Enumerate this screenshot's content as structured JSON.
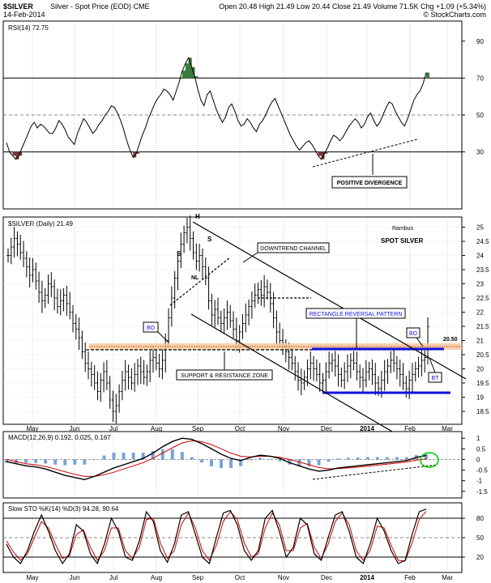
{
  "header": {
    "symbol": "$SILVER",
    "desc": "Silver - Spot Price (EOD)  CME",
    "date": "14-Feb-2014",
    "ohlc": "Open 20.48  High 21.49  Low 20.44  Close 21.49  Volume 71.5K  Chg +1.09 (+5.34%)",
    "copyright": "© StockCharts.com"
  },
  "chart_data": [
    {
      "type": "line",
      "panel": "rsi",
      "title": "RSI(14) 72.75",
      "ylim": [
        0,
        100
      ],
      "y_ticks": [
        30,
        50,
        70,
        90
      ],
      "overbought": 70,
      "oversold": 30,
      "x_ticks": [
        "May",
        "Jun",
        "Jul",
        "Aug",
        "Sep",
        "Oct",
        "Nov",
        "Dec",
        "2014",
        "Feb",
        "Mar"
      ],
      "series": [
        {
          "values": [
            35,
            30,
            28,
            26,
            28,
            32,
            36,
            40,
            44,
            46,
            43,
            45,
            44,
            42,
            40,
            40,
            43,
            47,
            45,
            42,
            38,
            36,
            34,
            40,
            44,
            48,
            46,
            43,
            40,
            42,
            45,
            47,
            50,
            52,
            55,
            54,
            51,
            47,
            42,
            36,
            31,
            27,
            29,
            34,
            39,
            43,
            48,
            52,
            56,
            59,
            61,
            64,
            63,
            61,
            58,
            63,
            68,
            74,
            78,
            81,
            76,
            71,
            64,
            58,
            55,
            61,
            63,
            58,
            53,
            49,
            46,
            49,
            54,
            56,
            52,
            47,
            44,
            45,
            48,
            46,
            43,
            41,
            45,
            47,
            50,
            54,
            57,
            59,
            55,
            51,
            47,
            43,
            39,
            36,
            33,
            31,
            33,
            35,
            36,
            34,
            31,
            28,
            26,
            29,
            32,
            36,
            39,
            38,
            36,
            38,
            41,
            44,
            46,
            48,
            46,
            43,
            45,
            49,
            51,
            47,
            44,
            46,
            50,
            54,
            57,
            56,
            52,
            49,
            46,
            44,
            48,
            53,
            58,
            61,
            63,
            67,
            73
          ]
        }
      ],
      "annotations": [
        "POSITIVE DIVERGENCE"
      ]
    },
    {
      "type": "candlestick",
      "panel": "price",
      "title": "$SILVER (Daily) 21.49",
      "ylim": [
        18.1,
        25.3
      ],
      "y_ticks": [
        18.5,
        19.0,
        19.5,
        20.0,
        20.5,
        21.0,
        21.5,
        22.0,
        22.5,
        23.0,
        23.5,
        24.0,
        24.5,
        25.0
      ],
      "x_ticks": [
        "May",
        "Jun",
        "Jul",
        "Aug",
        "Sep",
        "Oct",
        "Nov",
        "Dec",
        "2014",
        "Feb",
        "Mar"
      ],
      "close": [
        24.0,
        24.3,
        24.6,
        24.4,
        24.1,
        23.9,
        23.6,
        23.3,
        23.5,
        23.1,
        22.7,
        22.4,
        22.6,
        23.0,
        22.9,
        22.5,
        22.2,
        22.4,
        22.6,
        22.3,
        22.0,
        21.6,
        21.4,
        21.1,
        20.6,
        20.2,
        20.0,
        19.8,
        19.5,
        19.2,
        19.6,
        19.9,
        19.5,
        18.9,
        18.5,
        18.7,
        19.2,
        19.6,
        19.9,
        19.7,
        19.5,
        19.8,
        20.1,
        19.9,
        19.7,
        19.9,
        20.3,
        20.4,
        20.2,
        20.0,
        20.3,
        21.0,
        21.8,
        22.5,
        23.2,
        23.8,
        24.4,
        24.8,
        25.0,
        24.6,
        24.1,
        23.8,
        24.0,
        23.6,
        23.2,
        22.4,
        21.9,
        22.1,
        21.8,
        21.6,
        21.8,
        22.0,
        21.7,
        21.4,
        21.0,
        21.3,
        21.6,
        21.9,
        22.2,
        22.4,
        22.6,
        22.8,
        22.6,
        22.9,
        22.7,
        22.3,
        21.8,
        21.3,
        21.0,
        20.8,
        20.6,
        20.4,
        20.2,
        19.9,
        19.6,
        19.5,
        19.7,
        20.0,
        20.2,
        20.0,
        19.8,
        19.5,
        19.6,
        19.9,
        20.2,
        20.3,
        20.1,
        19.8,
        19.6,
        19.9,
        20.1,
        20.3,
        20.2,
        19.9,
        19.7,
        19.6,
        19.9,
        20.0,
        19.8,
        19.5,
        19.3,
        19.6,
        19.9,
        20.1,
        20.3,
        20.2,
        20.0,
        19.8,
        19.5,
        19.3,
        19.6,
        19.8,
        20.0,
        20.1,
        20.3,
        20.4,
        21.49
      ],
      "levels": {
        "support_resistance": 20.5,
        "rectangle_top": 20.45,
        "rectangle_bottom": 19.0
      },
      "level_label": "20.50",
      "annotations": {
        "H": "H",
        "S1": "S",
        "S2": "S",
        "NL": "NL",
        "BO1": "BO",
        "BO2": "BO",
        "BT": "BT",
        "downtrend": "DOWNTREND CHANNEL",
        "rectangle": "RECTANGLE REVERSAL PATTERN",
        "support": "SUPPORT & RESISTANCE ZONE",
        "author": "Rambus",
        "subtitle": "SPOT SILVER"
      }
    },
    {
      "type": "line",
      "panel": "macd",
      "title": "MACD(12,26,9) 0.192, 0.025, 0.167",
      "ylim": [
        -1.7,
        1.2
      ],
      "y_ticks": [
        -1.5,
        -1.0,
        -0.5,
        0.0,
        0.5,
        1.0
      ],
      "x_ticks": [
        "May",
        "Jun",
        "Jul",
        "Aug",
        "Sep",
        "Oct",
        "Nov",
        "Dec",
        "2014",
        "Feb",
        "Mar"
      ],
      "series": [
        {
          "name": "MACD",
          "values": [
            -0.1,
            -0.2,
            -0.3,
            -0.35,
            -0.45,
            -0.6,
            -0.75,
            -0.85,
            -0.95,
            -0.8,
            -0.6,
            -0.4,
            -0.25,
            -0.1,
            0.05,
            0.3,
            0.6,
            0.85,
            1.0,
            0.95,
            0.75,
            0.5,
            0.25,
            0.05,
            -0.05,
            0.1,
            0.2,
            0.15,
            0.05,
            -0.15,
            -0.3,
            -0.45,
            -0.55,
            -0.5,
            -0.4,
            -0.35,
            -0.3,
            -0.25,
            -0.2,
            -0.15,
            -0.1,
            -0.05,
            0.1,
            0.19
          ]
        },
        {
          "name": "Signal",
          "values": [
            0.0,
            -0.1,
            -0.2,
            -0.25,
            -0.33,
            -0.45,
            -0.58,
            -0.7,
            -0.8,
            -0.8,
            -0.72,
            -0.6,
            -0.45,
            -0.3,
            -0.15,
            0.05,
            0.3,
            0.55,
            0.78,
            0.88,
            0.84,
            0.7,
            0.5,
            0.3,
            0.15,
            0.12,
            0.15,
            0.15,
            0.1,
            0.0,
            -0.12,
            -0.25,
            -0.38,
            -0.44,
            -0.43,
            -0.4,
            -0.36,
            -0.32,
            -0.27,
            -0.22,
            -0.17,
            -0.12,
            -0.03,
            0.03
          ]
        }
      ]
    },
    {
      "type": "line",
      "panel": "sto",
      "title": "Slow STO %K(14) %D(3) 94.28, 90.64",
      "ylim": [
        0,
        100
      ],
      "y_ticks": [
        20,
        50,
        80
      ],
      "x_ticks": [
        "May",
        "Jun",
        "Jul",
        "Aug",
        "Sep",
        "Oct",
        "Nov",
        "Dec",
        "2014",
        "Feb",
        "Mar"
      ],
      "series": [
        {
          "name": "%K",
          "values": [
            40,
            20,
            10,
            30,
            60,
            85,
            60,
            30,
            10,
            25,
            70,
            60,
            25,
            10,
            40,
            80,
            60,
            20,
            15,
            45,
            90,
            75,
            30,
            12,
            40,
            85,
            90,
            55,
            20,
            10,
            50,
            88,
            92,
            70,
            30,
            15,
            30,
            80,
            92,
            60,
            20,
            35,
            80,
            70,
            25,
            15,
            50,
            85,
            90,
            60,
            20,
            10,
            40,
            80,
            60,
            30,
            10,
            15,
            55,
            90,
            94
          ]
        },
        {
          "name": "%D",
          "values": [
            45,
            28,
            15,
            25,
            50,
            75,
            65,
            40,
            18,
            22,
            55,
            62,
            35,
            15,
            30,
            65,
            65,
            30,
            18,
            35,
            78,
            80,
            42,
            18,
            30,
            70,
            88,
            65,
            30,
            15,
            38,
            75,
            90,
            78,
            42,
            20,
            25,
            65,
            88,
            70,
            30,
            30,
            65,
            72,
            35,
            18,
            40,
            75,
            88,
            70,
            30,
            15,
            30,
            68,
            65,
            38,
            15,
            14,
            42,
            78,
            90.6
          ]
        }
      ]
    }
  ]
}
